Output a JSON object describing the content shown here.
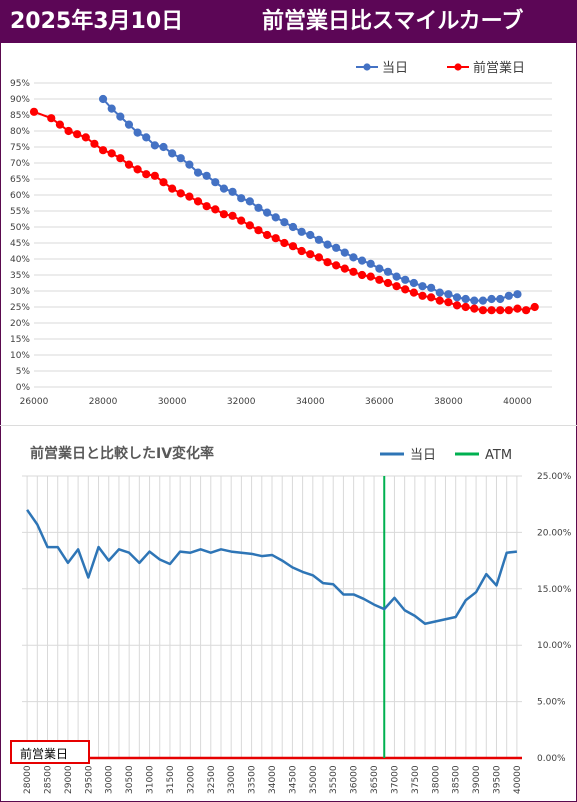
{
  "header": {
    "date": "2025年3月10日",
    "title": "前営業日比スマイルカーブ"
  },
  "chart_data": [
    {
      "type": "line",
      "title": "",
      "xlabel": "",
      "ylabel": "",
      "xlim": [
        26000,
        41000
      ],
      "ylim": [
        0,
        95
      ],
      "x_ticks": [
        26000,
        28000,
        30000,
        32000,
        34000,
        36000,
        38000,
        40000
      ],
      "y_ticks": [
        "0%",
        "5%",
        "10%",
        "15%",
        "20%",
        "25%",
        "30%",
        "35%",
        "40%",
        "45%",
        "50%",
        "55%",
        "60%",
        "65%",
        "70%",
        "75%",
        "80%",
        "85%",
        "90%",
        "95%"
      ],
      "grid": true,
      "legend_position": "top-right",
      "series": [
        {
          "name": "当日",
          "color": "#4472c4",
          "x": [
            28000,
            28250,
            28500,
            28750,
            29000,
            29250,
            29500,
            29750,
            30000,
            30250,
            30500,
            30750,
            31000,
            31250,
            31500,
            31750,
            32000,
            32250,
            32500,
            32750,
            33000,
            33250,
            33500,
            33750,
            34000,
            34250,
            34500,
            34750,
            35000,
            35250,
            35500,
            35750,
            36000,
            36250,
            36500,
            36750,
            37000,
            37250,
            37500,
            37750,
            38000,
            38250,
            38500,
            38750,
            39000,
            39250,
            39500,
            39750,
            40000
          ],
          "values": [
            90,
            87,
            84.5,
            82,
            79.5,
            78,
            75.5,
            75,
            73,
            71.5,
            69.5,
            67,
            66,
            64,
            62,
            61,
            59,
            58,
            56,
            54.5,
            53,
            51.5,
            50,
            48.5,
            47.5,
            46,
            44.5,
            43.5,
            42,
            40.5,
            39.5,
            38.5,
            37,
            36,
            34.5,
            33.5,
            32.5,
            31.5,
            31,
            29.5,
            29,
            28,
            27.5,
            27,
            27,
            27.5,
            27.5,
            28.5,
            29
          ]
        },
        {
          "name": "前営業日",
          "color": "#ff0000",
          "x": [
            26000,
            26500,
            26750,
            27000,
            27250,
            27500,
            27750,
            28000,
            28250,
            28500,
            28750,
            29000,
            29250,
            29500,
            29750,
            30000,
            30250,
            30500,
            30750,
            31000,
            31250,
            31500,
            31750,
            32000,
            32250,
            32500,
            32750,
            33000,
            33250,
            33500,
            33750,
            34000,
            34250,
            34500,
            34750,
            35000,
            35250,
            35500,
            35750,
            36000,
            36250,
            36500,
            36750,
            37000,
            37250,
            37500,
            37750,
            38000,
            38250,
            38500,
            38750,
            39000,
            39250,
            39500,
            39750,
            40000,
            40250,
            40500
          ],
          "values": [
            86,
            84,
            82,
            80,
            79,
            78,
            76,
            74,
            73,
            71.5,
            69.5,
            68,
            66.5,
            66,
            64,
            62,
            60.5,
            59.5,
            58,
            56.5,
            55.5,
            54,
            53.5,
            52,
            50.5,
            49,
            47.5,
            46.5,
            45,
            44,
            42.5,
            41.5,
            40.5,
            39,
            38,
            37,
            36,
            35,
            34.5,
            33.5,
            32.5,
            31.5,
            30.5,
            29.5,
            28.5,
            28,
            27,
            26.5,
            25.5,
            25,
            24.5,
            24,
            24,
            24,
            24,
            24.5,
            24,
            25
          ]
        }
      ]
    },
    {
      "type": "line",
      "title": "前営業日と比較したIV変化率",
      "xlabel": "",
      "ylabel": "",
      "categories": [
        "28000",
        "28250",
        "28500",
        "28750",
        "29000",
        "29250",
        "29500",
        "29750",
        "30000",
        "30250",
        "30500",
        "30750",
        "31000",
        "31250",
        "31500",
        "31750",
        "32000",
        "32250",
        "32500",
        "32750",
        "33000",
        "33250",
        "33500",
        "33750",
        "34000",
        "34250",
        "34500",
        "34750",
        "35000",
        "35250",
        "35500",
        "35750",
        "36000",
        "36250",
        "36500",
        "36750",
        "37000",
        "37250",
        "37500",
        "37750",
        "38000",
        "38250",
        "38500",
        "38750",
        "39000",
        "39250",
        "39500",
        "39750",
        "40000"
      ],
      "x_tick_labels": [
        "28000",
        "28500",
        "29000",
        "29500",
        "30000",
        "30500",
        "31000",
        "31500",
        "32000",
        "32500",
        "33000",
        "33500",
        "34000",
        "34500",
        "35000",
        "35500",
        "36000",
        "36500",
        "37000",
        "37500",
        "38000",
        "38500",
        "39000",
        "39500",
        "40000"
      ],
      "y_ticks": [
        "0.00%",
        "5.00%",
        "10.00%",
        "15.00%",
        "20.00%",
        "25.00%"
      ],
      "ylim": [
        0,
        25
      ],
      "grid": true,
      "legend_position": "top-right",
      "atm_strike": "36750",
      "baseline_label": "前営業日",
      "series": [
        {
          "name": "当日",
          "color": "#2e75b6",
          "values": [
            22,
            20.7,
            18.7,
            18.7,
            17.3,
            18.5,
            16,
            18.7,
            17.5,
            18.5,
            18.2,
            17.3,
            18.3,
            17.6,
            17.2,
            18.3,
            18.2,
            18.5,
            18.2,
            18.5,
            18.3,
            18.2,
            18.1,
            17.9,
            18,
            17.5,
            16.9,
            16.5,
            16.2,
            15.5,
            15.4,
            14.5,
            14.5,
            14.1,
            13.6,
            13.2,
            14.2,
            13.1,
            12.6,
            11.9,
            12.1,
            12.3,
            12.5,
            14,
            14.7,
            16.3,
            15.3,
            18.2,
            18.3
          ]
        },
        {
          "name": "ATM",
          "color": "#00b050"
        }
      ]
    }
  ]
}
